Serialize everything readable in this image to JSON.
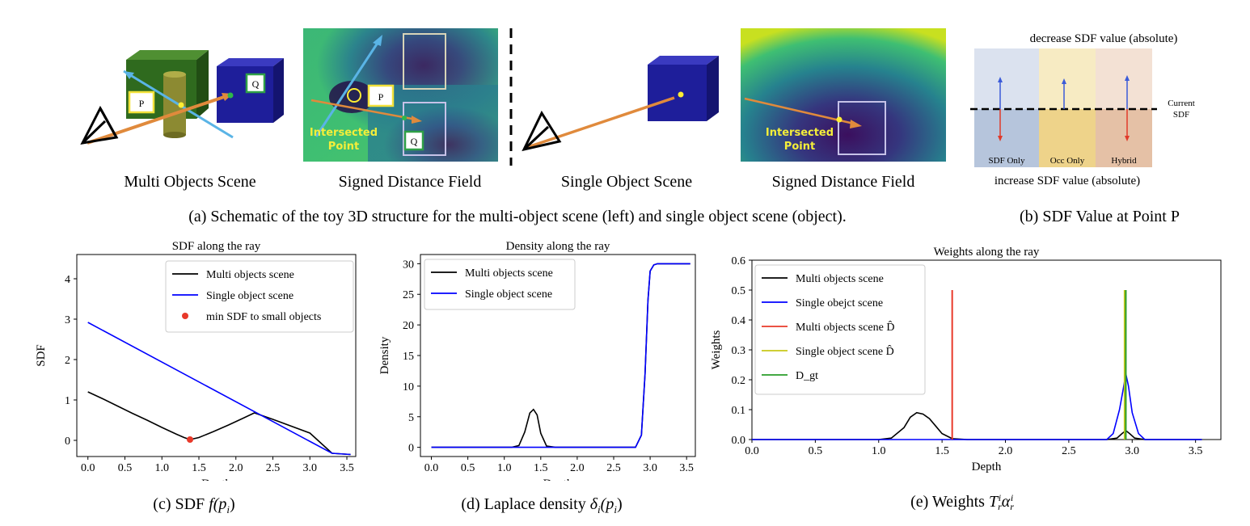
{
  "panel_a": {
    "multi_scene_label": "Multi Objects Scene",
    "sdf_label_1": "Signed Distance Field",
    "single_scene_label": "Single Object Scene",
    "sdf_label_2": "Signed Distance Field",
    "caption": "(a) Schematic of the toy 3D structure for the multi-object scene (left) and single object scene (object).",
    "point_p": "P",
    "point_q": "Q",
    "intersected_1": "Intersected",
    "intersected_2": "Point"
  },
  "panel_b": {
    "top_label": "decrease SDF value (absolute)",
    "bottom_label": "increase SDF value (absolute)",
    "current_1": "Current",
    "current_2": "SDF",
    "col1": "SDF Only",
    "col2": "Occ Only",
    "col3": "Hybrid",
    "caption": "(b) SDF Value at Point P",
    "colors": {
      "col1_top": "#dbe2ef",
      "col1_bot": "#b6c5dc",
      "col2_top": "#f7ebc3",
      "col2_bot": "#eed38a",
      "col3_top": "#f3e1d4",
      "col3_bot": "#e5c1a6"
    }
  },
  "captions": {
    "c_prefix": "(c) SDF ",
    "c_math": "f(p",
    "c_sub": "i",
    "c_close": ")",
    "d_prefix": "(d) Laplace density ",
    "d_math": "δ",
    "d_sub": "i",
    "d_arg": "(p",
    "d_sub2": "i",
    "d_close": ")",
    "e_prefix": "(e) Weights ",
    "e_T": "T",
    "e_sup1": "i",
    "e_sub1": "r",
    "e_alpha": "α",
    "e_sup2": "i",
    "e_sub2": "r"
  },
  "chart_data": [
    {
      "type": "line",
      "title": "SDF along the ray",
      "xlabel": "Depth",
      "ylabel": "SDF",
      "xlim": [
        -0.15,
        3.62
      ],
      "ylim": [
        -0.4,
        4.6
      ],
      "xticks": [
        "0.0",
        "0.5",
        "1.0",
        "1.5",
        "2.0",
        "2.5",
        "3.0",
        "3.5"
      ],
      "yticks": [
        "0",
        "1",
        "2",
        "3",
        "4"
      ],
      "legend_position": "top-right",
      "series": [
        {
          "name": "Multi objects scene",
          "color": "#000000",
          "x": [
            0,
            0.2,
            0.4,
            0.6,
            0.8,
            1.0,
            1.2,
            1.3,
            1.38,
            1.5,
            1.7,
            1.9,
            2.1,
            2.25,
            2.5,
            3.0,
            3.3,
            3.55
          ],
          "y": [
            1.2,
            1.03,
            0.85,
            0.67,
            0.5,
            0.32,
            0.15,
            0.07,
            0.02,
            0.07,
            0.22,
            0.38,
            0.55,
            0.68,
            0.52,
            0.18,
            -0.32,
            -0.35
          ]
        },
        {
          "name": "Single object scene",
          "color": "#0000ff",
          "x": [
            0,
            3.3,
            3.55
          ],
          "y": [
            2.92,
            -0.32,
            -0.35
          ]
        },
        {
          "name": "min SDF to small objects",
          "color": "#e8392a",
          "marker": "dot",
          "x": [
            1.38
          ],
          "y": [
            0.02
          ]
        }
      ]
    },
    {
      "type": "line",
      "title": "Density along the ray",
      "xlabel": "Depth",
      "ylabel": "Density",
      "xlim": [
        -0.15,
        3.62
      ],
      "ylim": [
        -1.5,
        31.5
      ],
      "xticks": [
        "0.0",
        "0.5",
        "1.0",
        "1.5",
        "2.0",
        "2.5",
        "3.0",
        "3.5"
      ],
      "yticks": [
        "0",
        "5",
        "10",
        "15",
        "20",
        "25",
        "30"
      ],
      "legend_position": "top-left",
      "series": [
        {
          "name": "Multi objects scene",
          "color": "#000000",
          "x": [
            0,
            1.1,
            1.2,
            1.28,
            1.35,
            1.4,
            1.45,
            1.5,
            1.58,
            1.7,
            2.8,
            2.88,
            2.93,
            2.97,
            3.0,
            3.05,
            3.1,
            3.55
          ],
          "y": [
            0,
            0,
            0.3,
            2.5,
            5.6,
            6.2,
            5.3,
            2.3,
            0.2,
            0,
            0,
            2,
            12,
            24,
            28.8,
            29.8,
            30,
            30
          ]
        },
        {
          "name": "Single object scene",
          "color": "#0000ff",
          "x": [
            0,
            2.8,
            2.88,
            2.93,
            2.97,
            3.0,
            3.05,
            3.1,
            3.55
          ],
          "y": [
            0,
            0,
            2,
            12,
            24,
            28.8,
            29.8,
            30,
            30
          ]
        }
      ]
    },
    {
      "type": "line",
      "title": "Weights along the ray",
      "xlabel": "Depth",
      "ylabel": "Weights",
      "xlim": [
        0,
        3.7
      ],
      "ylim": [
        0,
        0.6
      ],
      "xticks": [
        "0.0",
        "0.5",
        "1.0",
        "1.5",
        "2.0",
        "2.5",
        "3.0",
        "3.5"
      ],
      "yticks": [
        "0.0",
        "0.1",
        "0.2",
        "0.3",
        "0.4",
        "0.5",
        "0.6"
      ],
      "legend_position": "top-left",
      "series": [
        {
          "name": "Multi objects scene",
          "color": "#000000",
          "x": [
            0,
            1.0,
            1.1,
            1.2,
            1.25,
            1.3,
            1.35,
            1.4,
            1.45,
            1.5,
            1.58,
            1.7,
            2.8,
            2.88,
            2.92,
            2.95,
            2.98,
            3.02,
            3.1,
            3.55
          ],
          "y": [
            0,
            0,
            0.005,
            0.04,
            0.075,
            0.09,
            0.085,
            0.07,
            0.045,
            0.02,
            0.003,
            0,
            0,
            0.005,
            0.02,
            0.03,
            0.02,
            0.005,
            0,
            0
          ]
        },
        {
          "name": "Single obejct scene",
          "color": "#0000ff",
          "x": [
            0,
            2.8,
            2.85,
            2.9,
            2.93,
            2.95,
            2.97,
            3.0,
            3.05,
            3.1,
            3.55
          ],
          "y": [
            0,
            0,
            0.02,
            0.1,
            0.17,
            0.22,
            0.18,
            0.09,
            0.02,
            0,
            0
          ]
        },
        {
          "name": "Multi objects scene D̂",
          "color": "#e8392a",
          "vline": 1.58,
          "height": 0.5
        },
        {
          "name": "Single object scene D̂",
          "color": "#c8c81a",
          "vline": 2.94,
          "height": 0.5
        },
        {
          "name": "D_gt",
          "color": "#2a9d2a",
          "vline": 2.95,
          "height": 0.5
        }
      ]
    }
  ]
}
